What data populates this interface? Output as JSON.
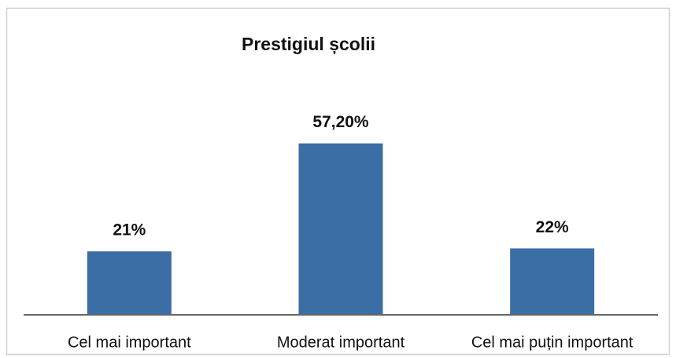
{
  "chart_data": {
    "type": "bar",
    "title": "Prestigiul școlii",
    "categories": [
      "Cel mai important",
      "Moderat important",
      "Cel mai puțin important"
    ],
    "values": [
      21,
      57.2,
      22
    ],
    "value_labels": [
      "21%",
      "57,20%",
      "22%"
    ],
    "color": "#3c6ea6"
  }
}
